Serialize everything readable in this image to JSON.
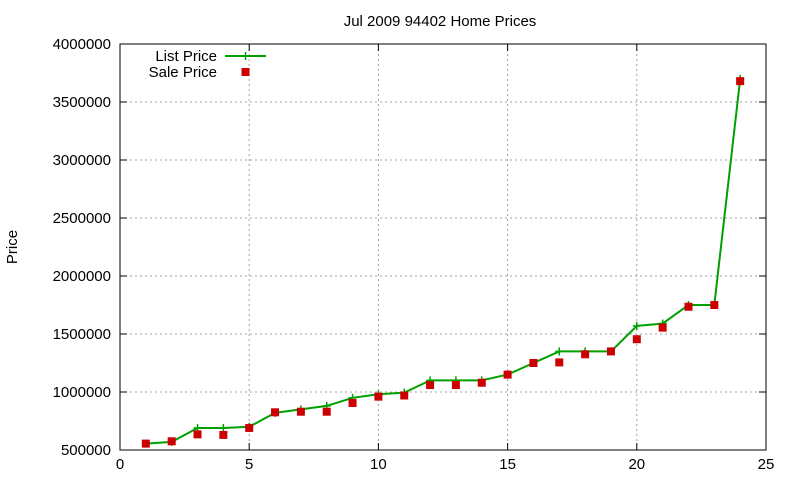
{
  "chart_data": {
    "type": "line",
    "title": "Jul 2009 94402 Home Prices",
    "xlabel": "",
    "ylabel": "Price",
    "xlim": [
      0,
      25
    ],
    "ylim": [
      500000,
      4000000
    ],
    "xticks": [
      0,
      5,
      10,
      15,
      20,
      25
    ],
    "yticks": [
      500000,
      1000000,
      1500000,
      2000000,
      2500000,
      3000000,
      3500000,
      4000000
    ],
    "grid": true,
    "legend_position": "top-left",
    "series": [
      {
        "name": "List Price",
        "style": "line+marker",
        "marker": "plus",
        "color": "#00a000",
        "x": [
          1,
          2,
          3,
          4,
          5,
          6,
          7,
          8,
          9,
          10,
          11,
          12,
          13,
          14,
          15,
          16,
          17,
          18,
          19,
          20,
          21,
          22,
          23,
          24
        ],
        "y": [
          555000,
          570000,
          690000,
          690000,
          700000,
          820000,
          850000,
          880000,
          950000,
          980000,
          995000,
          1100000,
          1100000,
          1100000,
          1150000,
          1250000,
          1350000,
          1350000,
          1350000,
          1570000,
          1590000,
          1750000,
          1750000,
          3700000
        ]
      },
      {
        "name": "Sale Price",
        "style": "marker",
        "marker": "square",
        "color": "#cc0000",
        "x": [
          1,
          2,
          3,
          4,
          5,
          6,
          7,
          8,
          9,
          10,
          11,
          12,
          13,
          14,
          15,
          16,
          17,
          18,
          19,
          20,
          21,
          22,
          23,
          24
        ],
        "y": [
          555000,
          575000,
          635000,
          630000,
          690000,
          825000,
          830000,
          830000,
          905000,
          960000,
          970000,
          1060000,
          1060000,
          1080000,
          1150000,
          1250000,
          1255000,
          1325000,
          1350000,
          1455000,
          1555000,
          1735000,
          1750000,
          3680000
        ]
      }
    ]
  }
}
